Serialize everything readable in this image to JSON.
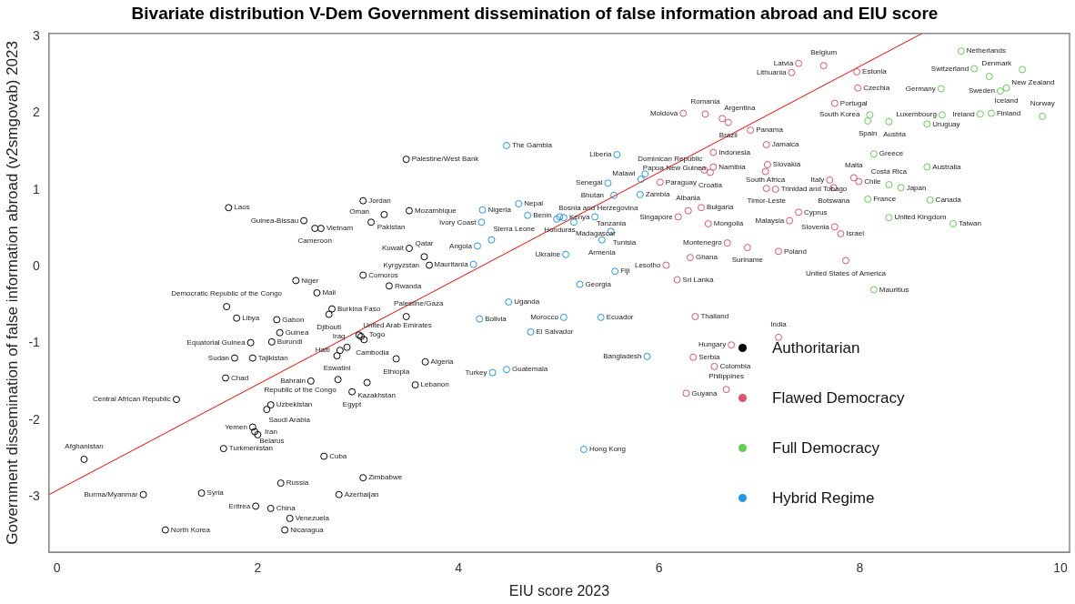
{
  "chart_data": {
    "type": "scatter",
    "title": "Bivariate distribution V-Dem Government dissemination of false information abroad and EIU score",
    "xlabel": "EIU score 2023",
    "ylabel": "Government dissemination of false information abroad (v2smgovab) 2023",
    "xlim": [
      -0.08,
      10.09
    ],
    "ylim": [
      -3.72,
      3.04
    ],
    "xticks": [
      0,
      2,
      4,
      6,
      8,
      10
    ],
    "yticks": [
      -3,
      -2,
      -1,
      0,
      1,
      2,
      3
    ],
    "grid": false,
    "legend": "bottom right",
    "series": [
      {
        "name": "Authoritarian",
        "color": "#000000",
        "marker": "circle",
        "x": [
          0.27,
          0.86,
          1.08,
          1.44,
          1.19,
          1.66,
          1.68,
          1.71,
          1.69,
          1.79,
          1.77,
          1.95,
          1.93,
          2.19,
          2.22,
          2.14,
          2.38,
          2.59,
          2.74,
          2.71,
          3.05,
          3.31,
          2.46,
          2.57,
          2.63,
          3.05,
          3.26,
          3.13,
          3.51,
          3.48,
          3.51,
          3.66,
          3.71,
          3.01,
          3.03,
          3.06,
          2.89,
          2.82,
          2.79,
          3.48,
          3.38,
          3.67,
          3.57,
          2.8,
          2.53,
          3.09,
          2.94,
          2.13,
          2.09,
          1.95,
          1.97,
          2.0,
          2.66,
          3.05,
          2.23,
          2.81,
          1.98,
          2.13,
          2.32,
          2.27
        ],
        "values": [
          -2.51,
          -2.97,
          -3.43,
          -2.95,
          -1.73,
          -2.37,
          -1.45,
          0.77,
          -0.52,
          -0.67,
          -1.19,
          -1.19,
          -0.99,
          -0.69,
          -0.86,
          -0.98,
          -0.18,
          -0.34,
          -0.55,
          -0.62,
          -0.11,
          -0.25,
          0.6,
          0.5,
          0.5,
          0.86,
          0.68,
          0.58,
          0.73,
          1.4,
          0.24,
          0.13,
          0.02,
          -0.89,
          -0.91,
          -0.95,
          -1.05,
          -1.09,
          -1.16,
          -0.65,
          -1.2,
          -1.24,
          -1.54,
          -1.47,
          -1.49,
          -1.51,
          -1.63,
          -1.8,
          -1.86,
          -2.09,
          -2.15,
          -2.19,
          -2.47,
          -2.75,
          -2.82,
          -2.97,
          -3.12,
          -3.15,
          -3.28,
          -3.43
        ]
      },
      {
        "name": "Flawed Democracy",
        "color": "#df536b",
        "marker": "circle",
        "x": [
          6.72,
          6.01,
          6.24,
          6.46,
          6.63,
          6.69,
          6.91,
          6.54,
          6.45,
          6.51,
          6.54,
          6.42,
          6.29,
          6.19,
          6.49,
          6.68,
          6.88,
          6.31,
          6.07,
          6.18,
          6.36,
          6.34,
          6.55,
          6.27,
          6.67,
          7.19,
          7.39,
          7.32,
          7.64,
          7.97,
          7.98,
          7.75,
          7.07,
          7.08,
          7.06,
          7.07,
          7.16,
          7.39,
          7.3,
          7.7,
          7.74,
          7.94,
          7.99,
          7.75,
          7.81,
          7.19,
          7.86
        ],
        "values": [
          -1.02,
          1.1,
          2.0,
          1.99,
          1.93,
          1.88,
          1.78,
          1.49,
          1.26,
          1.23,
          1.3,
          0.77,
          0.73,
          0.65,
          0.56,
          0.31,
          0.25,
          0.12,
          0.02,
          -0.17,
          -0.65,
          -1.18,
          -1.3,
          -1.65,
          -1.6,
          -0.92,
          2.65,
          2.53,
          2.62,
          2.54,
          2.33,
          2.13,
          1.59,
          1.33,
          1.24,
          1.02,
          1.01,
          0.71,
          0.6,
          1.13,
          1.03,
          1.16,
          1.11,
          0.52,
          0.43,
          0.2,
          0.08
        ]
      },
      {
        "name": "Full Democracy",
        "color": "#61d04f",
        "marker": "circle",
        "x": [
          9.01,
          9.14,
          9.29,
          9.62,
          9.46,
          9.4,
          8.81,
          8.82,
          8.67,
          9.2,
          9.31,
          9.82,
          8.1,
          8.08,
          8.29,
          8.14,
          8.67,
          8.29,
          8.41,
          8.08,
          8.7,
          8.29,
          8.93,
          8.14
        ],
        "values": [
          2.81,
          2.58,
          2.48,
          2.57,
          2.33,
          2.29,
          2.32,
          1.98,
          1.86,
          1.99,
          2.0,
          1.96,
          1.98,
          1.9,
          1.89,
          1.47,
          1.3,
          1.07,
          1.03,
          0.88,
          0.87,
          0.64,
          0.56,
          -0.3
        ]
      },
      {
        "name": "Hybrid Regime",
        "color": "#2297e6",
        "marker": "circle",
        "x": [
          4.48,
          4.24,
          4.23,
          4.33,
          4.19,
          4.15,
          4.6,
          4.69,
          4.98,
          5.01,
          5.05,
          5.36,
          5.15,
          5.52,
          5.43,
          5.07,
          5.21,
          5.56,
          5.58,
          5.49,
          5.55,
          5.81,
          5.86,
          5.82,
          4.5,
          4.21,
          4.72,
          5.05,
          5.42,
          5.88,
          4.34,
          4.48,
          5.25
        ],
        "values": [
          1.58,
          0.74,
          0.58,
          0.35,
          0.27,
          0.03,
          0.82,
          0.67,
          0.62,
          0.65,
          0.64,
          0.65,
          0.58,
          0.46,
          0.35,
          0.16,
          -0.23,
          -0.06,
          1.46,
          1.09,
          0.93,
          0.94,
          1.21,
          1.14,
          -0.46,
          -0.68,
          -0.85,
          -0.66,
          -0.66,
          -1.17,
          -1.38,
          -1.34,
          -2.38
        ]
      },
      {
        "type": "line",
        "color": "#ff0000",
        "x": [
          -0.08,
          8.62
        ],
        "values": [
          -2.97,
          3.04
        ]
      }
    ],
    "annotations": [
      {
        "text": "Afghanistan",
        "x": 0.27,
        "y": -2.51
      },
      {
        "text": "Burma/Myanmar",
        "x": 0.86,
        "y": -2.97
      },
      {
        "text": "North Korea",
        "x": 1.08,
        "y": -3.43
      },
      {
        "text": "Syria",
        "x": 1.44,
        "y": -2.95
      },
      {
        "text": "Central African Republic",
        "x": 1.19,
        "y": -1.73
      },
      {
        "text": "Turkmenistan",
        "x": 1.66,
        "y": -2.37
      },
      {
        "text": "Chad",
        "x": 1.68,
        "y": -1.45
      },
      {
        "text": "Laos",
        "x": 1.71,
        "y": 0.77
      },
      {
        "text": "Democratic Republic of the Congo",
        "x": 1.69,
        "y": -0.52
      },
      {
        "text": "Libya",
        "x": 1.79,
        "y": -0.67
      },
      {
        "text": "Sudan",
        "x": 1.77,
        "y": -1.19
      },
      {
        "text": "Tajikistan",
        "x": 1.95,
        "y": -1.19
      },
      {
        "text": "Equatorial Guinea",
        "x": 1.93,
        "y": -0.99
      },
      {
        "text": "Gabon",
        "x": 2.19,
        "y": -0.69
      },
      {
        "text": "Guinea",
        "x": 2.22,
        "y": -0.86
      },
      {
        "text": "Burundi",
        "x": 2.14,
        "y": -0.98
      },
      {
        "text": "Niger",
        "x": 2.38,
        "y": -0.18
      },
      {
        "text": "Mali",
        "x": 2.59,
        "y": -0.34
      },
      {
        "text": "Burkina Faso",
        "x": 2.74,
        "y": -0.55
      },
      {
        "text": "Djibouti",
        "x": 2.71,
        "y": -0.62
      },
      {
        "text": "Comoros",
        "x": 3.05,
        "y": -0.11
      },
      {
        "text": "Rwanda",
        "x": 3.31,
        "y": -0.25
      },
      {
        "text": "Guinea-Bissau",
        "x": 2.46,
        "y": 0.6
      },
      {
        "text": "Cameroon",
        "x": 2.57,
        "y": 0.5
      },
      {
        "text": "Vietnam",
        "x": 2.63,
        "y": 0.5
      },
      {
        "text": "Jordan",
        "x": 3.05,
        "y": 0.86
      },
      {
        "text": "Pakistan",
        "x": 3.26,
        "y": 0.68
      },
      {
        "text": "Oman",
        "x": 3.13,
        "y": 0.58
      },
      {
        "text": "Mozambique",
        "x": 3.51,
        "y": 0.73
      },
      {
        "text": "Palestine/West Bank",
        "x": 3.48,
        "y": 1.4
      },
      {
        "text": "Kuwait",
        "x": 3.51,
        "y": 0.24
      },
      {
        "text": "Qatar",
        "x": 3.66,
        "y": 0.13
      },
      {
        "text": "Kyrgyzstan",
        "x": 3.71,
        "y": 0.02
      },
      {
        "text": "Togo",
        "x": 3.01,
        "y": -0.89
      },
      {
        "text": "United Arab Emirates",
        "x": 3.03,
        "y": -0.91
      },
      {
        "text": "Cambodia",
        "x": 3.06,
        "y": -0.95
      },
      {
        "text": "Iraq",
        "x": 2.89,
        "y": -1.05
      },
      {
        "text": "Haiti",
        "x": 2.82,
        "y": -1.09
      },
      {
        "text": "Eswatini",
        "x": 2.79,
        "y": -1.16
      },
      {
        "text": "Palestine/Gaza",
        "x": 3.48,
        "y": -0.65
      },
      {
        "text": "Ethiopia",
        "x": 3.38,
        "y": -1.2
      },
      {
        "text": "Algeria",
        "x": 3.67,
        "y": -1.24
      },
      {
        "text": "Lebanon",
        "x": 3.57,
        "y": -1.54
      },
      {
        "text": "Republic of the Congo",
        "x": 2.8,
        "y": -1.47
      },
      {
        "text": "Bahrain",
        "x": 2.53,
        "y": -1.49
      },
      {
        "text": "Kazakhstan",
        "x": 3.09,
        "y": -1.51
      },
      {
        "text": "Egypt",
        "x": 2.94,
        "y": -1.63
      },
      {
        "text": "Uzbekistan",
        "x": 2.13,
        "y": -1.8
      },
      {
        "text": "Saudi Arabia",
        "x": 2.09,
        "y": -1.86
      },
      {
        "text": "Yemen",
        "x": 1.95,
        "y": -2.09
      },
      {
        "text": "Iran",
        "x": 1.97,
        "y": -2.15
      },
      {
        "text": "Belarus",
        "x": 2.0,
        "y": -2.19
      },
      {
        "text": "Cuba",
        "x": 2.66,
        "y": -2.47
      },
      {
        "text": "Zimbabwe",
        "x": 3.05,
        "y": -2.75
      },
      {
        "text": "Russia",
        "x": 2.23,
        "y": -2.82
      },
      {
        "text": "Azerbaijan",
        "x": 2.81,
        "y": -2.97
      },
      {
        "text": "Eritrea",
        "x": 1.98,
        "y": -3.12
      },
      {
        "text": "China",
        "x": 2.13,
        "y": -3.15
      },
      {
        "text": "Venezuela",
        "x": 2.32,
        "y": -3.28
      },
      {
        "text": "Nicaragua",
        "x": 2.27,
        "y": -3.43
      },
      {
        "text": "Hungary",
        "x": 6.72,
        "y": -1.02
      },
      {
        "text": "Paraguay",
        "x": 6.01,
        "y": 1.1
      },
      {
        "text": "Moldova",
        "x": 6.24,
        "y": 2.0
      },
      {
        "text": "Romania",
        "x": 6.46,
        "y": 1.99
      },
      {
        "text": "Argentina",
        "x": 6.63,
        "y": 1.93
      },
      {
        "text": "Brazil",
        "x": 6.69,
        "y": 1.88
      },
      {
        "text": "Panama",
        "x": 6.91,
        "y": 1.78
      },
      {
        "text": "Indonesia",
        "x": 6.54,
        "y": 1.49
      },
      {
        "text": "Dominican Republic",
        "x": 6.45,
        "y": 1.26
      },
      {
        "text": "Croatia",
        "x": 6.51,
        "y": 1.23
      },
      {
        "text": "Namibia",
        "x": 6.54,
        "y": 1.3
      },
      {
        "text": "Bulgaria",
        "x": 6.42,
        "y": 0.77
      },
      {
        "text": "Albania",
        "x": 6.29,
        "y": 0.73
      },
      {
        "text": "Singapore",
        "x": 6.19,
        "y": 0.65
      },
      {
        "text": "Mongolia",
        "x": 6.49,
        "y": 0.56
      },
      {
        "text": "Montenegro",
        "x": 6.68,
        "y": 0.31
      },
      {
        "text": "Suriname",
        "x": 6.88,
        "y": 0.25
      },
      {
        "text": "Ghana",
        "x": 6.31,
        "y": 0.12
      },
      {
        "text": "Lesotho",
        "x": 6.07,
        "y": 0.02
      },
      {
        "text": "Sri Lanka",
        "x": 6.18,
        "y": -0.17
      },
      {
        "text": "Thailand",
        "x": 6.36,
        "y": -0.65
      },
      {
        "text": "Serbia",
        "x": 6.34,
        "y": -1.18
      },
      {
        "text": "Colombia",
        "x": 6.55,
        "y": -1.3
      },
      {
        "text": "Guyana",
        "x": 6.27,
        "y": -1.65
      },
      {
        "text": "Philippines",
        "x": 6.67,
        "y": -1.6
      },
      {
        "text": "India",
        "x": 7.19,
        "y": -0.92
      },
      {
        "text": "Latvia",
        "x": 7.39,
        "y": 2.65
      },
      {
        "text": "Lithuania",
        "x": 7.32,
        "y": 2.53
      },
      {
        "text": "Belgium",
        "x": 7.64,
        "y": 2.62
      },
      {
        "text": "Estonia",
        "x": 7.97,
        "y": 2.54
      },
      {
        "text": "Czechia",
        "x": 7.98,
        "y": 2.33
      },
      {
        "text": "Portugal",
        "x": 7.75,
        "y": 2.13
      },
      {
        "text": "Jamaica",
        "x": 7.07,
        "y": 1.59
      },
      {
        "text": "Slovakia",
        "x": 7.08,
        "y": 1.33
      },
      {
        "text": "South Africa",
        "x": 7.06,
        "y": 1.24
      },
      {
        "text": "Timor-Leste",
        "x": 7.07,
        "y": 1.02
      },
      {
        "text": "Trinidad and Tobago",
        "x": 7.16,
        "y": 1.01
      },
      {
        "text": "Cyprus",
        "x": 7.39,
        "y": 0.71
      },
      {
        "text": "Malaysia",
        "x": 7.3,
        "y": 0.6
      },
      {
        "text": "Italy",
        "x": 7.7,
        "y": 1.13
      },
      {
        "text": "Botswana",
        "x": 7.74,
        "y": 1.03
      },
      {
        "text": "Malta",
        "x": 7.94,
        "y": 1.16
      },
      {
        "text": "Chile",
        "x": 7.99,
        "y": 1.11
      },
      {
        "text": "Slovenia",
        "x": 7.75,
        "y": 0.52
      },
      {
        "text": "Israel",
        "x": 7.81,
        "y": 0.43
      },
      {
        "text": "Poland",
        "x": 7.19,
        "y": 0.2
      },
      {
        "text": "United States of America",
        "x": 7.86,
        "y": 0.08
      },
      {
        "text": "Netherlands",
        "x": 9.01,
        "y": 2.81
      },
      {
        "text": "Switzerland",
        "x": 9.14,
        "y": 2.58
      },
      {
        "text": "Denmark",
        "x": 9.29,
        "y": 2.48
      },
      {
        "text": "New Zealand",
        "x": 9.62,
        "y": 2.57
      },
      {
        "text": "Iceland",
        "x": 9.46,
        "y": 2.33
      },
      {
        "text": "Sweden",
        "x": 9.4,
        "y": 2.29
      },
      {
        "text": "Germany",
        "x": 8.81,
        "y": 2.32
      },
      {
        "text": "Luxembourg",
        "x": 8.82,
        "y": 1.98
      },
      {
        "text": "Uruguay",
        "x": 8.67,
        "y": 1.86
      },
      {
        "text": "Ireland",
        "x": 9.2,
        "y": 1.99
      },
      {
        "text": "Finland",
        "x": 9.31,
        "y": 2.0
      },
      {
        "text": "Norway",
        "x": 9.82,
        "y": 1.96
      },
      {
        "text": "South Korea",
        "x": 8.1,
        "y": 1.98
      },
      {
        "text": "Spain",
        "x": 8.08,
        "y": 1.9
      },
      {
        "text": "Austria",
        "x": 8.29,
        "y": 1.89
      },
      {
        "text": "Greece",
        "x": 8.14,
        "y": 1.47
      },
      {
        "text": "Australia",
        "x": 8.67,
        "y": 1.3
      },
      {
        "text": "Costa Rica",
        "x": 8.29,
        "y": 1.07
      },
      {
        "text": "Japan",
        "x": 8.41,
        "y": 1.03
      },
      {
        "text": "France",
        "x": 8.08,
        "y": 0.88
      },
      {
        "text": "Canada",
        "x": 8.7,
        "y": 0.87
      },
      {
        "text": "United Kingdom",
        "x": 8.29,
        "y": 0.64
      },
      {
        "text": "Taiwan",
        "x": 8.93,
        "y": 0.56
      },
      {
        "text": "Mauritius",
        "x": 8.14,
        "y": -0.3
      },
      {
        "text": "The Gambia",
        "x": 4.48,
        "y": 1.58
      },
      {
        "text": "Nigeria",
        "x": 4.24,
        "y": 0.74
      },
      {
        "text": "Ivory Coast",
        "x": 4.23,
        "y": 0.58
      },
      {
        "text": "Sierra Leone",
        "x": 4.33,
        "y": 0.35
      },
      {
        "text": "Angola",
        "x": 4.19,
        "y": 0.27
      },
      {
        "text": "Mauritania",
        "x": 4.15,
        "y": 0.03
      },
      {
        "text": "Nepal",
        "x": 4.6,
        "y": 0.82
      },
      {
        "text": "Benin",
        "x": 4.69,
        "y": 0.67
      },
      {
        "text": "Bosnia and Herzegovina",
        "x": 4.98,
        "y": 0.62
      },
      {
        "text": "Honduras",
        "x": 5.01,
        "y": 0.65
      },
      {
        "text": "Kenya",
        "x": 5.05,
        "y": 0.64
      },
      {
        "text": "Tanzania",
        "x": 5.36,
        "y": 0.65
      },
      {
        "text": "Madagascar",
        "x": 5.15,
        "y": 0.58
      },
      {
        "text": "Tunisia",
        "x": 5.52,
        "y": 0.46
      },
      {
        "text": "Armenia",
        "x": 5.43,
        "y": 0.35
      },
      {
        "text": "Ukraine",
        "x": 5.07,
        "y": 0.16
      },
      {
        "text": "Georgia",
        "x": 5.21,
        "y": -0.23
      },
      {
        "text": "Fiji",
        "x": 5.56,
        "y": -0.06
      },
      {
        "text": "Liberia",
        "x": 5.58,
        "y": 1.46
      },
      {
        "text": "Senegal",
        "x": 5.49,
        "y": 1.09
      },
      {
        "text": "Bhutan",
        "x": 5.55,
        "y": 0.93
      },
      {
        "text": "Zambia",
        "x": 5.81,
        "y": 0.94
      },
      {
        "text": "Malawi",
        "x": 5.86,
        "y": 1.21
      },
      {
        "text": "Papua New Guinea",
        "x": 5.82,
        "y": 1.14
      },
      {
        "text": "Uganda",
        "x": 4.5,
        "y": -0.46
      },
      {
        "text": "Bolivia",
        "x": 4.21,
        "y": -0.68
      },
      {
        "text": "El Salvador",
        "x": 4.72,
        "y": -0.85
      },
      {
        "text": "Morocco",
        "x": 5.05,
        "y": -0.66
      },
      {
        "text": "Ecuador",
        "x": 5.42,
        "y": -0.66
      },
      {
        "text": "Bangladesh",
        "x": 5.88,
        "y": -1.17
      },
      {
        "text": "Turkey",
        "x": 4.34,
        "y": -1.38
      },
      {
        "text": "Guatemala",
        "x": 4.48,
        "y": -1.34
      },
      {
        "text": "Hong Kong",
        "x": 5.25,
        "y": -2.38
      }
    ]
  }
}
